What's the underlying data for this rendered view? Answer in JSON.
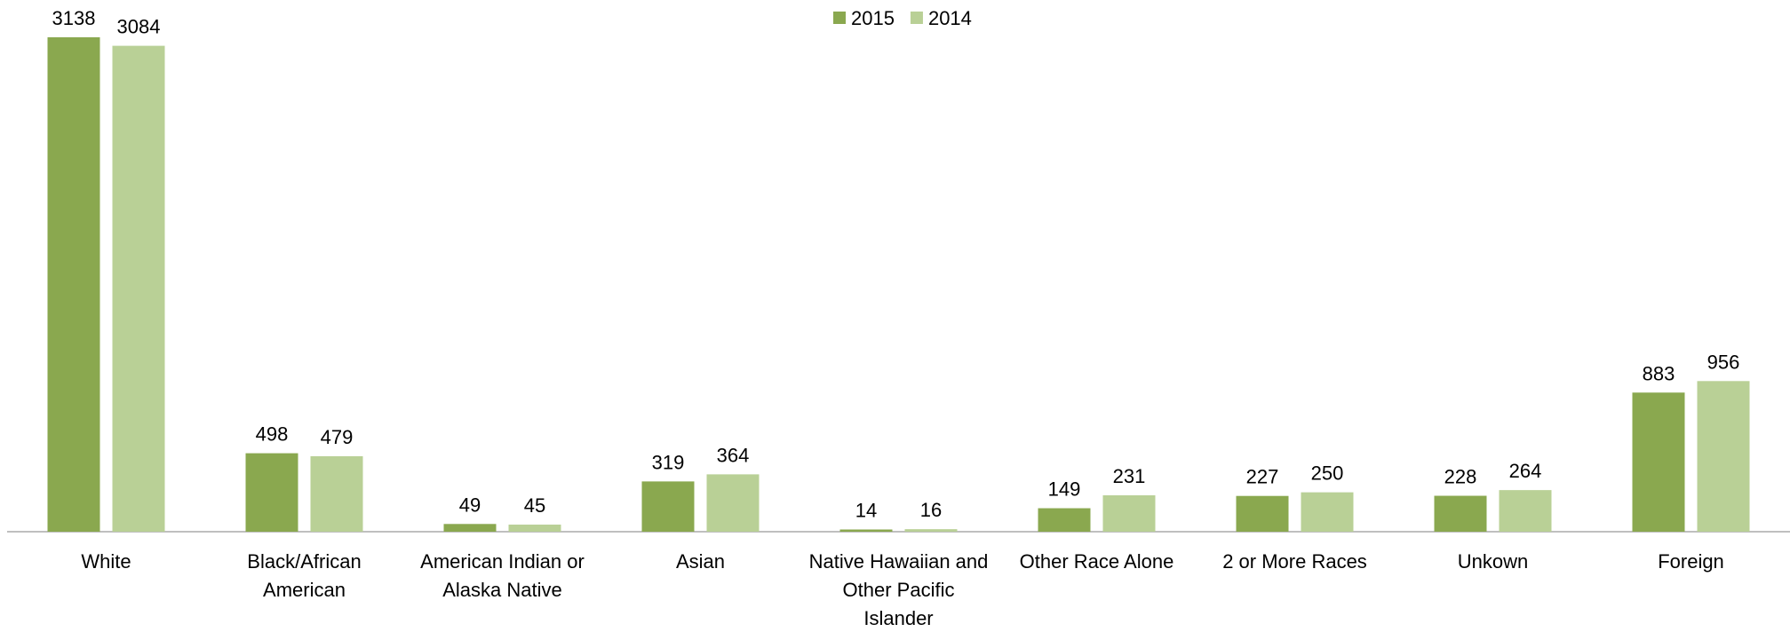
{
  "chart_data": {
    "type": "bar",
    "categories": [
      "White",
      "Black/African American",
      "American Indian or Alaska Native",
      "Asian",
      "Native Hawaiian and Other Pacific Islander",
      "Other Race Alone",
      "2 or More Races",
      "Unkown",
      "Foreign"
    ],
    "series": [
      {
        "name": "2015",
        "color": "#8aa84f",
        "values": [
          3138,
          498,
          49,
          319,
          14,
          149,
          227,
          228,
          883
        ]
      },
      {
        "name": "2014",
        "color": "#b9d096",
        "values": [
          3084,
          479,
          45,
          364,
          16,
          231,
          250,
          264,
          956
        ]
      }
    ],
    "ylim": [
      0,
      3200
    ],
    "legend": "top"
  }
}
